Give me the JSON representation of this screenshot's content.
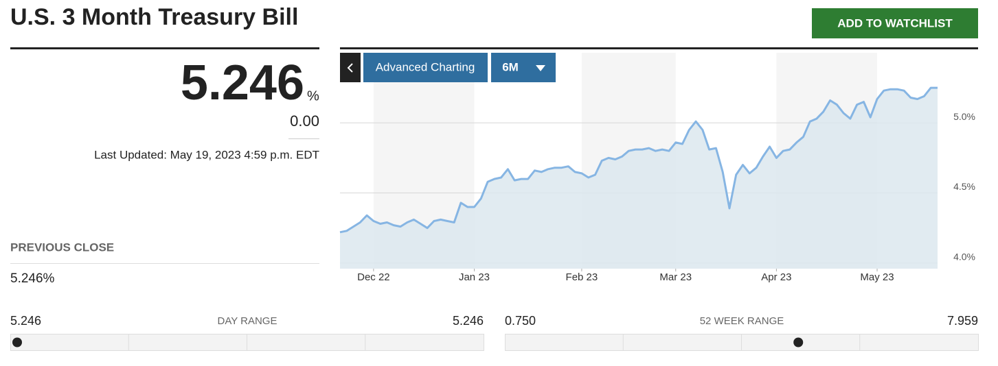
{
  "header": {
    "title": "U.S. 3 Month Treasury Bill",
    "button": "ADD TO WATCHLIST"
  },
  "quote": {
    "value": "5.246",
    "unit": "%",
    "change": "0.00",
    "updated": "Last Updated: May 19, 2023 4:59 p.m. EDT"
  },
  "previous_close": {
    "label": "PREVIOUS CLOSE",
    "value": "5.246%"
  },
  "day_range": {
    "low": "5.246",
    "label": "DAY RANGE",
    "high": "5.246"
  },
  "week_range": {
    "low": "0.750",
    "label": "52 WEEK RANGE",
    "high": "7.959"
  },
  "controls": {
    "advanced": "Advanced Charting",
    "period": "6M"
  },
  "chart_data": {
    "type": "line",
    "categories": [
      null,
      null,
      null,
      null,
      null,
      "Dec 22",
      null,
      null,
      null,
      null,
      null,
      null,
      null,
      null,
      null,
      null,
      null,
      null,
      null,
      null,
      "Jan 23",
      null,
      null,
      null,
      null,
      null,
      null,
      null,
      null,
      null,
      null,
      null,
      null,
      null,
      null,
      null,
      "Feb 23",
      null,
      null,
      null,
      null,
      null,
      null,
      null,
      null,
      null,
      null,
      null,
      null,
      null,
      "Mar 23",
      null,
      null,
      null,
      null,
      null,
      null,
      null,
      null,
      null,
      null,
      null,
      null,
      null,
      null,
      "Apr 23",
      null,
      null,
      null,
      null,
      null,
      null,
      null,
      null,
      null,
      null,
      null,
      null,
      null,
      null,
      "May 23",
      null,
      null,
      null,
      null,
      null,
      null,
      null,
      null,
      null
    ],
    "values": [
      4.22,
      4.23,
      4.26,
      4.29,
      4.34,
      4.3,
      4.28,
      4.29,
      4.27,
      4.26,
      4.29,
      4.31,
      4.28,
      4.25,
      4.3,
      4.31,
      4.3,
      4.29,
      4.43,
      4.4,
      4.4,
      4.46,
      4.58,
      4.6,
      4.61,
      4.67,
      4.59,
      4.6,
      4.6,
      4.66,
      4.65,
      4.67,
      4.68,
      4.68,
      4.69,
      4.65,
      4.64,
      4.61,
      4.63,
      4.73,
      4.75,
      4.74,
      4.76,
      4.8,
      4.81,
      4.81,
      4.82,
      4.8,
      4.81,
      4.8,
      4.86,
      4.85,
      4.95,
      5.01,
      4.95,
      4.81,
      4.82,
      4.65,
      4.39,
      4.63,
      4.7,
      4.64,
      4.68,
      4.76,
      4.83,
      4.75,
      4.8,
      4.81,
      4.86,
      4.9,
      5.01,
      5.03,
      5.08,
      5.16,
      5.13,
      5.07,
      5.03,
      5.13,
      5.15,
      5.04,
      5.17,
      5.23,
      5.24,
      5.24,
      5.23,
      5.18,
      5.17,
      5.19,
      5.25,
      5.25
    ],
    "color": "#86b5e3",
    "ylim": [
      3.96,
      5.5
    ],
    "yticks": [
      {
        "value": 4,
        "label": "4.0%"
      },
      {
        "value": 4.5,
        "label": "4.5%"
      },
      {
        "value": 5,
        "label": "5.0%"
      }
    ],
    "grid": true
  }
}
